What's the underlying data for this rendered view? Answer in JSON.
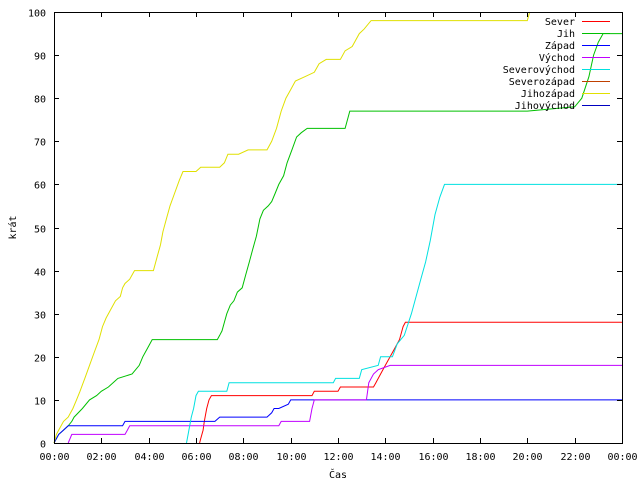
{
  "chart_data": {
    "type": "line",
    "title": "",
    "xlabel": "Čas",
    "ylabel": "krát",
    "xlim": [
      0,
      24
    ],
    "ylim": [
      0,
      100
    ],
    "x_ticks": [
      0,
      2,
      4,
      6,
      8,
      10,
      12,
      14,
      16,
      18,
      20,
      22,
      24
    ],
    "x_tick_labels": [
      "00:00",
      "02:00",
      "04:00",
      "06:00",
      "08:00",
      "10:00",
      "12:00",
      "14:00",
      "16:00",
      "18:00",
      "20:00",
      "22:00",
      "00:00"
    ],
    "y_ticks": [
      0,
      10,
      20,
      30,
      40,
      50,
      60,
      70,
      80,
      90,
      100
    ],
    "y_tick_labels": [
      "0",
      "10",
      "20",
      "30",
      "40",
      "50",
      "60",
      "70",
      "80",
      "90",
      "100"
    ],
    "grid": false,
    "legend_position": "top-right",
    "series": [
      {
        "name": "Sever",
        "color": "#ff0000",
        "points": [
          [
            6.15,
            0
          ],
          [
            6.2,
            1
          ],
          [
            6.3,
            3
          ],
          [
            6.35,
            5
          ],
          [
            6.45,
            8
          ],
          [
            6.55,
            10
          ],
          [
            6.65,
            11
          ],
          [
            8.5,
            11
          ],
          [
            9.2,
            11
          ],
          [
            10.9,
            11
          ],
          [
            11.0,
            12
          ],
          [
            12.0,
            12
          ],
          [
            12.1,
            13
          ],
          [
            13.5,
            13
          ],
          [
            13.6,
            14
          ],
          [
            13.8,
            16
          ],
          [
            14.0,
            18
          ],
          [
            14.2,
            20
          ],
          [
            14.4,
            22
          ],
          [
            14.6,
            24
          ],
          [
            14.75,
            27
          ],
          [
            14.85,
            28
          ],
          [
            24,
            28
          ]
        ]
      },
      {
        "name": "Jih",
        "color": "#00c000",
        "points": [
          [
            0,
            0
          ],
          [
            0.2,
            2
          ],
          [
            0.4,
            3
          ],
          [
            0.6,
            4
          ],
          [
            0.75,
            5
          ],
          [
            0.85,
            6
          ],
          [
            1.2,
            8
          ],
          [
            1.5,
            10
          ],
          [
            1.8,
            11
          ],
          [
            2.0,
            12
          ],
          [
            2.3,
            13
          ],
          [
            2.7,
            15
          ],
          [
            3.3,
            16
          ],
          [
            3.6,
            18
          ],
          [
            3.75,
            20
          ],
          [
            3.95,
            22
          ],
          [
            4.15,
            24
          ],
          [
            6.9,
            24
          ],
          [
            7.0,
            25
          ],
          [
            7.1,
            26
          ],
          [
            7.2,
            28
          ],
          [
            7.3,
            30
          ],
          [
            7.45,
            32
          ],
          [
            7.6,
            33
          ],
          [
            7.75,
            35
          ],
          [
            7.95,
            36
          ],
          [
            8.1,
            39
          ],
          [
            8.25,
            42
          ],
          [
            8.4,
            45
          ],
          [
            8.55,
            48
          ],
          [
            8.7,
            52
          ],
          [
            8.85,
            54
          ],
          [
            9.05,
            55
          ],
          [
            9.2,
            56
          ],
          [
            9.35,
            58
          ],
          [
            9.5,
            60
          ],
          [
            9.7,
            62
          ],
          [
            9.85,
            65
          ],
          [
            10.05,
            68
          ],
          [
            10.25,
            71
          ],
          [
            10.45,
            72
          ],
          [
            10.7,
            73
          ],
          [
            12.3,
            73
          ],
          [
            12.5,
            77
          ],
          [
            13.5,
            77
          ],
          [
            16.0,
            77
          ],
          [
            20.0,
            77
          ],
          [
            22.0,
            78
          ],
          [
            22.3,
            80
          ],
          [
            22.6,
            85
          ],
          [
            22.8,
            90
          ],
          [
            23.0,
            93
          ],
          [
            23.2,
            95
          ],
          [
            24,
            95
          ]
        ]
      },
      {
        "name": "Západ",
        "color": "#0000ff",
        "points": [
          [
            0,
            0
          ],
          [
            0.2,
            2
          ],
          [
            0.4,
            3
          ],
          [
            0.6,
            4
          ],
          [
            2.9,
            4
          ],
          [
            3.0,
            5
          ],
          [
            6.8,
            5
          ],
          [
            7.0,
            6
          ],
          [
            9.0,
            6
          ],
          [
            9.2,
            7
          ],
          [
            9.3,
            8
          ],
          [
            9.5,
            8
          ],
          [
            9.9,
            9
          ],
          [
            10.0,
            10
          ],
          [
            24,
            10
          ]
        ]
      },
      {
        "name": "Východ",
        "color": "#c000ff",
        "points": [
          [
            0.6,
            0
          ],
          [
            0.75,
            2
          ],
          [
            3.0,
            2
          ],
          [
            3.1,
            3
          ],
          [
            3.2,
            4
          ],
          [
            9.5,
            4
          ],
          [
            9.6,
            5
          ],
          [
            10.8,
            5
          ],
          [
            10.9,
            8
          ],
          [
            11.0,
            10
          ],
          [
            13.2,
            10
          ],
          [
            13.3,
            14
          ],
          [
            13.5,
            16
          ],
          [
            13.7,
            17
          ],
          [
            14.2,
            18
          ],
          [
            24,
            18
          ]
        ]
      },
      {
        "name": "Severovýchod",
        "color": "#00e0e0",
        "points": [
          [
            5.6,
            0
          ],
          [
            5.7,
            3
          ],
          [
            5.8,
            6
          ],
          [
            5.9,
            8
          ],
          [
            6.0,
            11
          ],
          [
            6.1,
            12
          ],
          [
            7.3,
            12
          ],
          [
            7.4,
            14
          ],
          [
            11.8,
            14
          ],
          [
            11.9,
            15
          ],
          [
            12.9,
            15
          ],
          [
            13.0,
            17
          ],
          [
            13.7,
            18
          ],
          [
            13.8,
            20
          ],
          [
            14.3,
            20
          ],
          [
            14.5,
            23
          ],
          [
            14.8,
            25
          ],
          [
            15.1,
            30
          ],
          [
            15.3,
            34
          ],
          [
            15.5,
            38
          ],
          [
            15.7,
            42
          ],
          [
            15.9,
            47
          ],
          [
            16.1,
            53
          ],
          [
            16.3,
            57
          ],
          [
            16.5,
            60
          ],
          [
            24,
            60
          ]
        ]
      },
      {
        "name": "Severozápad",
        "color": "#c04000",
        "points": []
      },
      {
        "name": "Jihozápad",
        "color": "#e0e000",
        "points": [
          [
            0,
            0
          ],
          [
            0.1,
            2
          ],
          [
            0.2,
            3
          ],
          [
            0.4,
            5
          ],
          [
            0.6,
            6
          ],
          [
            0.8,
            8
          ],
          [
            0.95,
            10
          ],
          [
            1.1,
            12
          ],
          [
            1.3,
            15
          ],
          [
            1.5,
            18
          ],
          [
            1.7,
            21
          ],
          [
            1.9,
            24
          ],
          [
            2.05,
            27
          ],
          [
            2.2,
            29
          ],
          [
            2.4,
            31
          ],
          [
            2.6,
            33
          ],
          [
            2.8,
            34
          ],
          [
            2.9,
            36
          ],
          [
            3.0,
            37
          ],
          [
            3.2,
            38
          ],
          [
            3.4,
            40
          ],
          [
            4.2,
            40
          ],
          [
            4.35,
            43
          ],
          [
            4.5,
            46
          ],
          [
            4.6,
            49
          ],
          [
            4.75,
            52
          ],
          [
            4.9,
            55
          ],
          [
            5.1,
            58
          ],
          [
            5.3,
            61
          ],
          [
            5.45,
            63
          ],
          [
            6.0,
            63
          ],
          [
            6.2,
            64
          ],
          [
            7.0,
            64
          ],
          [
            7.2,
            65
          ],
          [
            7.35,
            67
          ],
          [
            7.8,
            67
          ],
          [
            8.2,
            68
          ],
          [
            9.0,
            68
          ],
          [
            9.2,
            70
          ],
          [
            9.4,
            73
          ],
          [
            9.6,
            77
          ],
          [
            9.8,
            80
          ],
          [
            10.0,
            82
          ],
          [
            10.2,
            84
          ],
          [
            10.6,
            85
          ],
          [
            11.0,
            86
          ],
          [
            11.2,
            88
          ],
          [
            11.5,
            89
          ],
          [
            12.1,
            89
          ],
          [
            12.3,
            91
          ],
          [
            12.6,
            92
          ],
          [
            12.9,
            95
          ],
          [
            13.1,
            96
          ],
          [
            13.4,
            98
          ],
          [
            20.0,
            98
          ],
          [
            20.1,
            100
          ]
        ]
      },
      {
        "name": "Jihovýchod",
        "color": "#0000c0",
        "points": []
      }
    ]
  }
}
